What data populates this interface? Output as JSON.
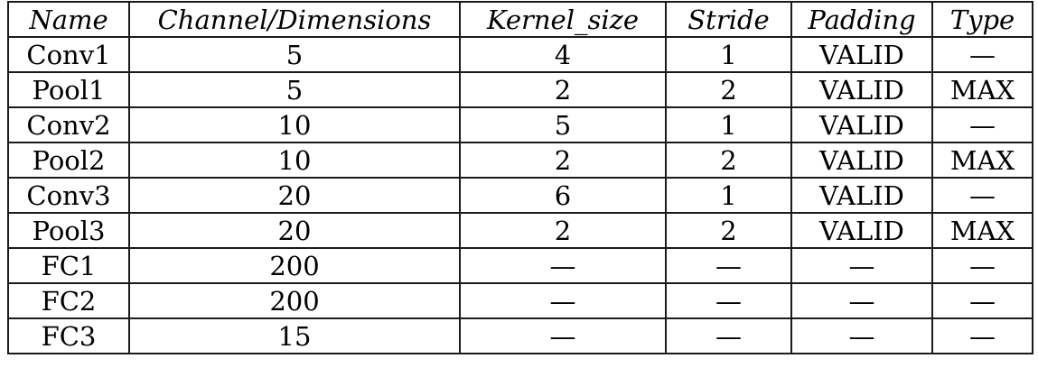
{
  "table": {
    "headers": [
      "Name",
      "Channel/Dimensions",
      "Kernel_size",
      "Stride",
      "Padding",
      "Type"
    ],
    "rows": [
      [
        "Conv1",
        "5",
        "4",
        "1",
        "VALID",
        "—"
      ],
      [
        "Pool1",
        "5",
        "2",
        "2",
        "VALID",
        "MAX"
      ],
      [
        "Conv2",
        "10",
        "5",
        "1",
        "VALID",
        "—"
      ],
      [
        "Pool2",
        "10",
        "2",
        "2",
        "VALID",
        "MAX"
      ],
      [
        "Conv3",
        "20",
        "6",
        "1",
        "VALID",
        "—"
      ],
      [
        "Pool3",
        "20",
        "2",
        "2",
        "VALID",
        "MAX"
      ],
      [
        "FC1",
        "200",
        "—",
        "—",
        "—",
        "—"
      ],
      [
        "FC2",
        "200",
        "—",
        "—",
        "—",
        "—"
      ],
      [
        "FC3",
        "15",
        "—",
        "—",
        "—",
        "—"
      ]
    ]
  }
}
